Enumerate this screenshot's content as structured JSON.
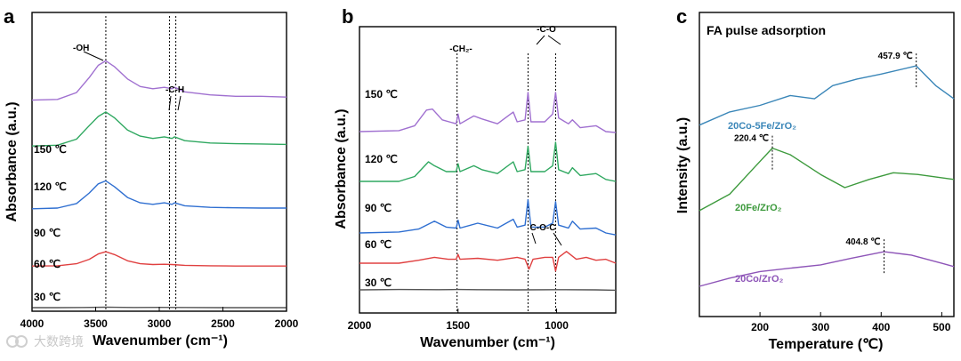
{
  "watermark": "大数跨境",
  "chart_data": [
    {
      "panel": "a",
      "type": "line",
      "xlabel": "Wavenumber (cm⁻¹)",
      "ylabel": "Absorbance (a.u.)",
      "xlim": [
        4000,
        2000
      ],
      "xticks": [
        "4000",
        "3500",
        "3000",
        "2500",
        "2000"
      ],
      "xtick_values": [
        4000,
        3500,
        3000,
        2500,
        2000
      ],
      "series": [
        {
          "name": "30 ℃",
          "color": "#555555",
          "x": [
            4000,
            3800,
            3600,
            3420,
            3200,
            3000,
            2800,
            2500,
            2200,
            2000
          ],
          "y": [
            0.0,
            0.0,
            0.01,
            0.03,
            0.01,
            0.02,
            0.01,
            0.0,
            0.0,
            0.0
          ]
        },
        {
          "name": "60 ℃",
          "color": "#e04040",
          "x": [
            4000,
            3800,
            3650,
            3550,
            3480,
            3420,
            3350,
            3250,
            3150,
            3050,
            2960,
            2900,
            2800,
            2600,
            2400,
            2200,
            2000
          ],
          "y": [
            0.4,
            0.42,
            0.55,
            0.85,
            1.2,
            1.35,
            1.15,
            0.75,
            0.55,
            0.5,
            0.52,
            0.5,
            0.45,
            0.42,
            0.4,
            0.4,
            0.4
          ]
        },
        {
          "name": "90 ℃",
          "color": "#2f6fd1",
          "x": [
            4000,
            3800,
            3650,
            3550,
            3480,
            3420,
            3350,
            3250,
            3150,
            3050,
            2960,
            2900,
            2880,
            2800,
            2600,
            2400,
            2200,
            2000
          ],
          "y": [
            1.95,
            2.0,
            2.3,
            3.0,
            3.6,
            3.8,
            3.4,
            2.7,
            2.35,
            2.25,
            2.35,
            2.25,
            2.35,
            2.15,
            2.05,
            2.02,
            2.0,
            2.0
          ]
        },
        {
          "name": "120 ℃",
          "color": "#2fa860",
          "x": [
            4000,
            3800,
            3650,
            3550,
            3480,
            3420,
            3350,
            3250,
            3150,
            3050,
            2960,
            2900,
            2880,
            2800,
            2600,
            2400,
            2200,
            2000
          ],
          "y": [
            3.05,
            3.1,
            3.5,
            4.4,
            5.0,
            5.3,
            4.9,
            4.1,
            3.7,
            3.55,
            3.65,
            3.55,
            3.65,
            3.4,
            3.25,
            3.2,
            3.18,
            3.15
          ]
        },
        {
          "name": "150 ℃",
          "color": "#a070d0",
          "x": [
            4000,
            3800,
            3650,
            3550,
            3480,
            3420,
            3350,
            3250,
            3150,
            3050,
            2960,
            2900,
            2880,
            2800,
            2600,
            2400,
            2200,
            2000
          ],
          "y": [
            4.2,
            4.25,
            4.7,
            5.7,
            6.5,
            6.8,
            6.4,
            5.6,
            5.1,
            4.95,
            5.05,
            4.95,
            5.05,
            4.75,
            4.55,
            4.45,
            4.45,
            4.4
          ]
        }
      ],
      "markers": [
        {
          "x": 3420,
          "label": "-OH"
        },
        {
          "x": 2920,
          "label": "-C-H"
        },
        {
          "x": 2870,
          "label": ""
        }
      ]
    },
    {
      "panel": "b",
      "type": "line",
      "xlabel": "Wavenumber (cm⁻¹)",
      "ylabel": "Absorbance (a.u.)",
      "xlim": [
        2000,
        700
      ],
      "xticks": [
        "2000",
        "1500",
        "1000"
      ],
      "xtick_values": [
        2000,
        1500,
        1000
      ],
      "series": [
        {
          "name": "30 ℃",
          "color": "#555555",
          "x": [
            2000,
            1800,
            1600,
            1500,
            1400,
            1200,
            1000,
            800,
            700
          ],
          "y": [
            0.0,
            0.02,
            0.01,
            0.02,
            0.01,
            0.0,
            0.01,
            0.0,
            -0.02
          ]
        },
        {
          "name": "60 ℃",
          "color": "#e04040",
          "x": [
            2000,
            1800,
            1700,
            1620,
            1550,
            1510,
            1500,
            1490,
            1400,
            1300,
            1200,
            1160,
            1140,
            1120,
            1060,
            1020,
            1005,
            990,
            950,
            900,
            850,
            800,
            750,
            700
          ],
          "y": [
            1.0,
            1.0,
            1.15,
            1.3,
            1.2,
            1.2,
            1.45,
            1.2,
            1.25,
            1.15,
            1.3,
            1.2,
            0.7,
            1.2,
            1.3,
            1.3,
            0.6,
            1.3,
            1.6,
            1.2,
            1.3,
            1.15,
            1.2,
            1.0
          ]
        },
        {
          "name": "90 ℃",
          "color": "#2f6fd1",
          "x": [
            2000,
            1800,
            1700,
            1620,
            1560,
            1510,
            1500,
            1490,
            1400,
            1300,
            1220,
            1200,
            1160,
            1145,
            1130,
            1060,
            1020,
            1005,
            990,
            940,
            920,
            880,
            800,
            750,
            700
          ],
          "y": [
            2.1,
            2.15,
            2.3,
            2.7,
            2.4,
            2.35,
            2.75,
            2.35,
            2.6,
            2.35,
            2.8,
            2.4,
            2.5,
            3.8,
            2.4,
            2.4,
            2.6,
            3.7,
            2.5,
            2.35,
            2.7,
            2.3,
            2.35,
            2.1,
            2.0
          ]
        },
        {
          "name": "120 ℃",
          "color": "#2fa860",
          "x": [
            2000,
            1800,
            1720,
            1650,
            1620,
            1560,
            1510,
            1500,
            1490,
            1420,
            1380,
            1300,
            1220,
            1200,
            1160,
            1145,
            1130,
            1060,
            1020,
            1005,
            990,
            940,
            920,
            880,
            800,
            750,
            700
          ],
          "y": [
            3.3,
            3.3,
            3.55,
            4.3,
            4.1,
            3.8,
            3.8,
            4.2,
            3.8,
            4.1,
            3.9,
            3.7,
            4.3,
            3.8,
            3.9,
            5.1,
            3.8,
            3.8,
            4.1,
            5.3,
            3.9,
            3.7,
            4.0,
            3.6,
            3.7,
            3.4,
            3.3
          ]
        },
        {
          "name": "150 ℃",
          "color": "#a070d0",
          "x": [
            2000,
            1800,
            1720,
            1660,
            1630,
            1580,
            1510,
            1500,
            1490,
            1420,
            1380,
            1300,
            1220,
            1200,
            1160,
            1145,
            1130,
            1060,
            1020,
            1005,
            990,
            940,
            920,
            880,
            800,
            750,
            700
          ],
          "y": [
            4.6,
            4.65,
            4.9,
            5.7,
            5.75,
            5.2,
            5.0,
            5.5,
            5.0,
            5.4,
            5.25,
            5.0,
            5.6,
            5.1,
            5.2,
            6.6,
            5.1,
            5.1,
            5.5,
            6.6,
            5.3,
            5.0,
            5.2,
            4.8,
            4.9,
            4.6,
            4.55
          ]
        }
      ],
      "markers": [
        {
          "x": 1505,
          "label": "-CH₂-"
        },
        {
          "x": 1145,
          "label": "-C-O"
        },
        {
          "x": 1005,
          "label": ""
        }
      ],
      "extra_label": "C-O-C"
    },
    {
      "panel": "c",
      "type": "line",
      "title": "FA pulse adsorption",
      "xlabel": "Temperature (℃)",
      "ylabel": "Intensity (a.u.)",
      "xlim": [
        100,
        520
      ],
      "xticks": [
        "200",
        "300",
        "400",
        "500"
      ],
      "xtick_values": [
        200,
        300,
        400,
        500
      ],
      "series": [
        {
          "name": "20Co/ZrO₂",
          "color": "#8e55b8",
          "x": [
            100,
            150,
            200,
            250,
            300,
            350,
            404.8,
            450,
            500,
            520
          ],
          "y": [
            0.0,
            0.25,
            0.45,
            0.55,
            0.65,
            0.85,
            1.05,
            0.95,
            0.7,
            0.6
          ]
        },
        {
          "name": "20Fe/ZrO₂",
          "color": "#3d9a3d",
          "x": [
            100,
            150,
            190,
            220.4,
            250,
            300,
            340,
            380,
            420,
            460,
            500,
            520
          ],
          "y": [
            2.3,
            2.8,
            3.6,
            4.2,
            4.0,
            3.4,
            3.0,
            3.25,
            3.45,
            3.4,
            3.3,
            3.25
          ]
        },
        {
          "name": "20Co-5Fe/ZrO₂",
          "color": "#3a86b8",
          "x": [
            100,
            150,
            200,
            250,
            290,
            320,
            360,
            400,
            457.9,
            490,
            520
          ],
          "y": [
            4.9,
            5.3,
            5.5,
            5.8,
            5.7,
            6.1,
            6.3,
            6.45,
            6.7,
            6.1,
            5.7
          ]
        }
      ],
      "peaks": [
        {
          "x": 457.9,
          "label": "457.9 ℃"
        },
        {
          "x": 220.4,
          "label": "220.4 ℃"
        },
        {
          "x": 404.8,
          "label": "404.8 ℃"
        }
      ]
    }
  ]
}
